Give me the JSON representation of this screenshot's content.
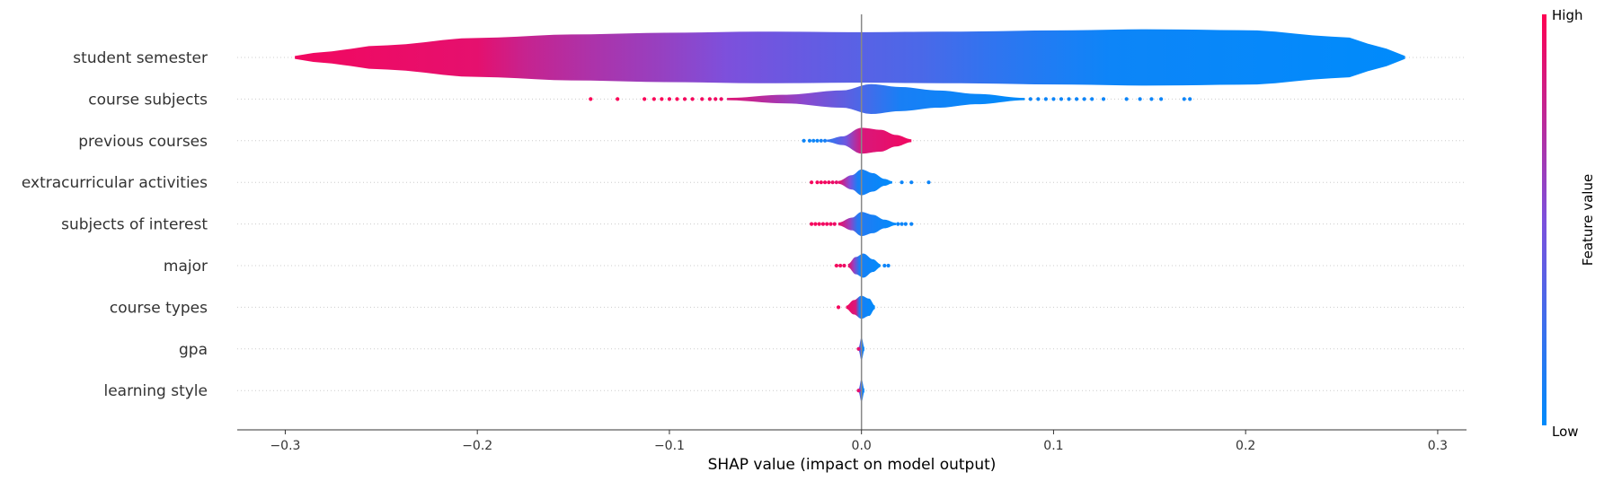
{
  "chart_data": {
    "type": "violin",
    "xlabel": "SHAP value (impact on model output)",
    "xlim": [
      -0.325,
      0.315
    ],
    "xticks": [
      -0.3,
      -0.2,
      -0.1,
      0.0,
      0.1,
      0.2,
      0.3
    ],
    "xtick_labels": [
      "−0.3",
      "−0.2",
      "−0.1",
      "0.0",
      "0.1",
      "0.2",
      "0.3"
    ],
    "colorbar": {
      "title": "Feature value",
      "high_label": "High",
      "low_label": "Low",
      "high_color": "#ff0052",
      "low_color": "#008bfb"
    },
    "features": [
      {
        "name": "student semester",
        "min": -0.295,
        "max": 0.283,
        "profile": [
          [
            -0.295,
            0.05
          ],
          [
            -0.28,
            0.2
          ],
          [
            -0.25,
            0.42
          ],
          [
            -0.2,
            0.68
          ],
          [
            -0.15,
            0.8
          ],
          [
            -0.1,
            0.86
          ],
          [
            -0.05,
            0.9
          ],
          [
            0.0,
            0.88
          ],
          [
            0.05,
            0.9
          ],
          [
            0.1,
            0.94
          ],
          [
            0.15,
            0.98
          ],
          [
            0.2,
            0.95
          ],
          [
            0.25,
            0.72
          ],
          [
            0.275,
            0.3
          ],
          [
            0.283,
            0.05
          ]
        ],
        "color_stops": [
          [
            -0.295,
            0.95
          ],
          [
            -0.2,
            0.9
          ],
          [
            -0.175,
            0.78
          ],
          [
            -0.14,
            0.68
          ],
          [
            -0.105,
            0.6
          ],
          [
            -0.07,
            0.5
          ],
          [
            -0.035,
            0.42
          ],
          [
            0.0,
            0.35
          ],
          [
            0.03,
            0.3
          ],
          [
            0.065,
            0.2
          ],
          [
            0.1,
            0.12
          ],
          [
            0.13,
            0.05
          ],
          [
            0.283,
            0.0
          ]
        ],
        "dots": []
      },
      {
        "name": "course subjects",
        "min": -0.07,
        "max": 0.085,
        "profile": [
          [
            -0.07,
            0.04
          ],
          [
            -0.04,
            0.15
          ],
          [
            -0.01,
            0.3
          ],
          [
            0.005,
            0.52
          ],
          [
            0.02,
            0.42
          ],
          [
            0.04,
            0.3
          ],
          [
            0.06,
            0.18
          ],
          [
            0.085,
            0.04
          ]
        ],
        "color_stops": [
          [
            -0.07,
            0.88
          ],
          [
            -0.03,
            0.55
          ],
          [
            0.0,
            0.3
          ],
          [
            0.02,
            0.1
          ],
          [
            0.085,
            0.0
          ]
        ],
        "dots": [
          [
            -0.141,
            0.98
          ],
          [
            -0.127,
            0.98
          ],
          [
            -0.113,
            0.98
          ],
          [
            -0.108,
            0.98
          ],
          [
            -0.104,
            0.98
          ],
          [
            -0.1,
            0.96
          ],
          [
            -0.096,
            0.98
          ],
          [
            -0.092,
            0.96
          ],
          [
            -0.088,
            0.96
          ],
          [
            -0.083,
            0.95
          ],
          [
            -0.079,
            0.95
          ],
          [
            -0.076,
            0.95
          ],
          [
            -0.073,
            0.93
          ],
          [
            0.088,
            0.05
          ],
          [
            0.092,
            0.05
          ],
          [
            0.096,
            0.05
          ],
          [
            0.1,
            0.05
          ],
          [
            0.104,
            0.05
          ],
          [
            0.108,
            0.05
          ],
          [
            0.112,
            0.05
          ],
          [
            0.116,
            0.05
          ],
          [
            0.12,
            0.05
          ],
          [
            0.126,
            0.05
          ],
          [
            0.138,
            0.05
          ],
          [
            0.145,
            0.05
          ],
          [
            0.151,
            0.05
          ],
          [
            0.156,
            0.05
          ],
          [
            0.168,
            0.05
          ],
          [
            0.171,
            0.05
          ]
        ]
      },
      {
        "name": "previous courses",
        "min": -0.018,
        "max": 0.026,
        "profile": [
          [
            -0.018,
            0.04
          ],
          [
            -0.01,
            0.15
          ],
          [
            0.0,
            0.45
          ],
          [
            0.01,
            0.38
          ],
          [
            0.018,
            0.2
          ],
          [
            0.026,
            0.05
          ]
        ],
        "color_stops": [
          [
            -0.018,
            0.15
          ],
          [
            -0.008,
            0.45
          ],
          [
            0.0,
            0.85
          ],
          [
            0.026,
            0.95
          ]
        ],
        "dots": [
          [
            -0.03,
            0.05
          ],
          [
            -0.027,
            0.05
          ],
          [
            -0.025,
            0.05
          ],
          [
            -0.023,
            0.05
          ],
          [
            -0.021,
            0.08
          ],
          [
            -0.019,
            0.1
          ]
        ]
      },
      {
        "name": "extracurricular activities",
        "min": -0.012,
        "max": 0.016,
        "profile": [
          [
            -0.012,
            0.05
          ],
          [
            -0.005,
            0.25
          ],
          [
            0.0,
            0.45
          ],
          [
            0.006,
            0.32
          ],
          [
            0.012,
            0.12
          ],
          [
            0.016,
            0.04
          ]
        ],
        "color_stops": [
          [
            -0.012,
            0.95
          ],
          [
            -0.006,
            0.5
          ],
          [
            -0.002,
            0.1
          ],
          [
            0.016,
            0.0
          ]
        ],
        "dots": [
          [
            -0.026,
            0.96
          ],
          [
            -0.023,
            0.96
          ],
          [
            -0.021,
            0.96
          ],
          [
            -0.019,
            0.95
          ],
          [
            -0.017,
            0.95
          ],
          [
            -0.015,
            0.93
          ],
          [
            -0.013,
            0.9
          ],
          [
            0.021,
            0.05
          ],
          [
            0.026,
            0.05
          ],
          [
            0.035,
            0.05
          ]
        ]
      },
      {
        "name": "subjects of interest",
        "min": -0.012,
        "max": 0.018,
        "profile": [
          [
            -0.012,
            0.05
          ],
          [
            -0.005,
            0.22
          ],
          [
            0.0,
            0.42
          ],
          [
            0.006,
            0.32
          ],
          [
            0.012,
            0.15
          ],
          [
            0.018,
            0.04
          ]
        ],
        "color_stops": [
          [
            -0.012,
            0.95
          ],
          [
            -0.006,
            0.6
          ],
          [
            -0.002,
            0.15
          ],
          [
            0.018,
            0.0
          ]
        ],
        "dots": [
          [
            -0.026,
            0.96
          ],
          [
            -0.024,
            0.96
          ],
          [
            -0.022,
            0.96
          ],
          [
            -0.02,
            0.95
          ],
          [
            -0.018,
            0.95
          ],
          [
            -0.016,
            0.95
          ],
          [
            -0.014,
            0.93
          ],
          [
            0.019,
            0.05
          ],
          [
            0.021,
            0.05
          ],
          [
            0.023,
            0.05
          ],
          [
            0.026,
            0.05
          ]
        ]
      },
      {
        "name": "major",
        "min": -0.007,
        "max": 0.01,
        "profile": [
          [
            -0.007,
            0.06
          ],
          [
            -0.003,
            0.3
          ],
          [
            0.001,
            0.42
          ],
          [
            0.006,
            0.22
          ],
          [
            0.01,
            0.05
          ]
        ],
        "color_stops": [
          [
            -0.007,
            0.95
          ],
          [
            -0.004,
            0.6
          ],
          [
            -0.001,
            0.1
          ],
          [
            0.01,
            0.0
          ]
        ],
        "dots": [
          [
            -0.013,
            0.96
          ],
          [
            -0.011,
            0.95
          ],
          [
            -0.009,
            0.93
          ],
          [
            0.012,
            0.05
          ],
          [
            0.014,
            0.05
          ]
        ]
      },
      {
        "name": "course types",
        "min": -0.008,
        "max": 0.007,
        "profile": [
          [
            -0.008,
            0.05
          ],
          [
            -0.004,
            0.25
          ],
          [
            0.0,
            0.4
          ],
          [
            0.004,
            0.3
          ],
          [
            0.007,
            0.06
          ]
        ],
        "color_stops": [
          [
            -0.008,
            0.95
          ],
          [
            -0.003,
            0.85
          ],
          [
            -0.001,
            0.1
          ],
          [
            0.007,
            0.0
          ]
        ],
        "dots": [
          [
            -0.012,
            0.96
          ]
        ]
      },
      {
        "name": "gpa",
        "min": -0.0015,
        "max": 0.0015,
        "profile": [
          [
            -0.0015,
            0.06
          ],
          [
            0.0,
            0.4
          ],
          [
            0.0015,
            0.06
          ]
        ],
        "color_stops": [
          [
            -0.0015,
            0.5
          ],
          [
            0.0,
            0.15
          ],
          [
            0.0015,
            0.0
          ]
        ],
        "dots": [
          [
            -0.0015,
            0.9
          ]
        ]
      },
      {
        "name": "learning style",
        "min": -0.0015,
        "max": 0.0015,
        "profile": [
          [
            -0.0015,
            0.06
          ],
          [
            0.0,
            0.4
          ],
          [
            0.0015,
            0.06
          ]
        ],
        "color_stops": [
          [
            -0.0015,
            0.5
          ],
          [
            0.0,
            0.15
          ],
          [
            0.0015,
            0.0
          ]
        ],
        "dots": [
          [
            -0.0015,
            0.9
          ]
        ]
      }
    ]
  }
}
